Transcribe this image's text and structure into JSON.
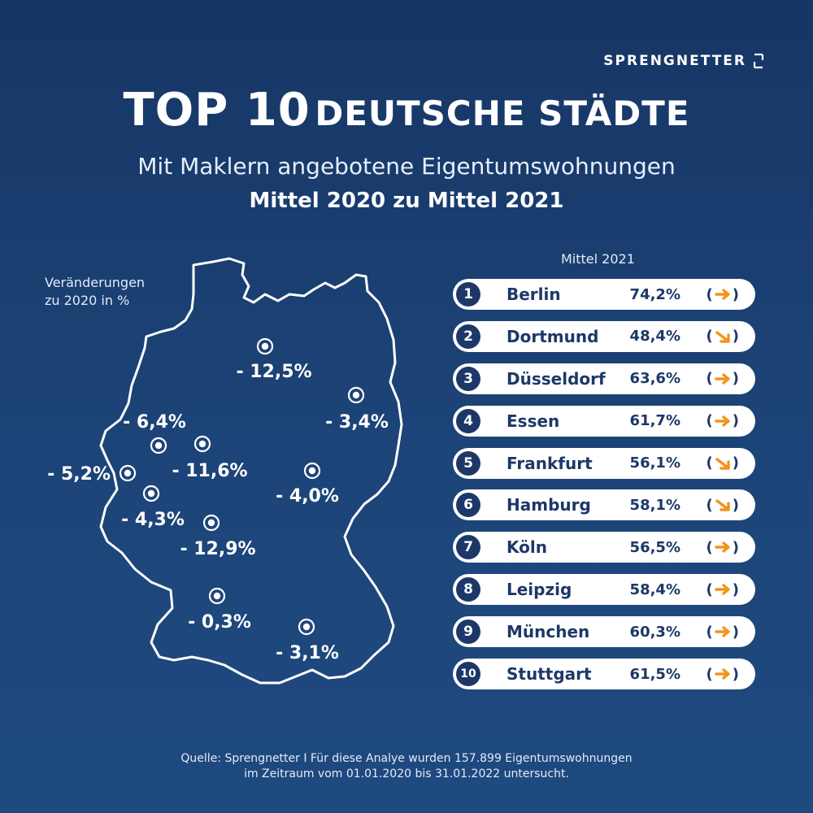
{
  "brand": "SPRENGNETTER",
  "title": {
    "part1": "TOP 10",
    "part2": "DEUTSCHE STÄDTE"
  },
  "subtitle": "Mit Maklern angebotene Eigentumswohnungen",
  "period": "Mittel 2020 zu Mittel 2021",
  "map_legend": {
    "line1": "Veränderungen",
    "line2": "zu 2020 in %"
  },
  "ranking_header": "Mittel 2021",
  "colors": {
    "background": "#1d4478",
    "row": "#ffffff",
    "text_dark": "#1d3868",
    "arrow": "#f2931c"
  },
  "chart_data": [
    {
      "type": "map",
      "legend": "Veränderungen zu 2020 in %",
      "markers": [
        {
          "label": "- 12,5%",
          "value": -12.5
        },
        {
          "label": "- 3,4%",
          "value": -3.4
        },
        {
          "label": "- 6,4%",
          "value": -6.4
        },
        {
          "label": "- 11,6%",
          "value": -11.6
        },
        {
          "label": "- 5,2%",
          "value": -5.2
        },
        {
          "label": "- 4,0%",
          "value": -4.0
        },
        {
          "label": "- 4,3%",
          "value": -4.3
        },
        {
          "label": "- 12,9%",
          "value": -12.9
        },
        {
          "label": "- 0,3%",
          "value": -0.3
        },
        {
          "label": "- 3,1%",
          "value": -3.1
        }
      ]
    },
    {
      "type": "table",
      "title": "Mittel 2021",
      "rows": [
        {
          "rank": "1",
          "city": "Berlin",
          "value": "74,2%",
          "trend": "right"
        },
        {
          "rank": "2",
          "city": "Dortmund",
          "value": "48,4%",
          "trend": "down-right"
        },
        {
          "rank": "3",
          "city": "Düsseldorf",
          "value": "63,6%",
          "trend": "right"
        },
        {
          "rank": "4",
          "city": "Essen",
          "value": "61,7%",
          "trend": "right"
        },
        {
          "rank": "5",
          "city": "Frankfurt",
          "value": "56,1%",
          "trend": "down-right"
        },
        {
          "rank": "6",
          "city": "Hamburg",
          "value": "58,1%",
          "trend": "down-right"
        },
        {
          "rank": "7",
          "city": "Köln",
          "value": "56,5%",
          "trend": "right"
        },
        {
          "rank": "8",
          "city": "Leipzig",
          "value": "58,4%",
          "trend": "right"
        },
        {
          "rank": "9",
          "city": "München",
          "value": "60,3%",
          "trend": "right"
        },
        {
          "rank": "10",
          "city": "Stuttgart",
          "value": "61,5%",
          "trend": "right"
        }
      ]
    }
  ],
  "source": {
    "line1": "Quelle: Sprengnetter I Für diese Analye wurden 157.899 Eigentumswohnungen",
    "line2": "im Zeitraum vom 01.01.2020 bis 31.01.2022 untersucht."
  }
}
